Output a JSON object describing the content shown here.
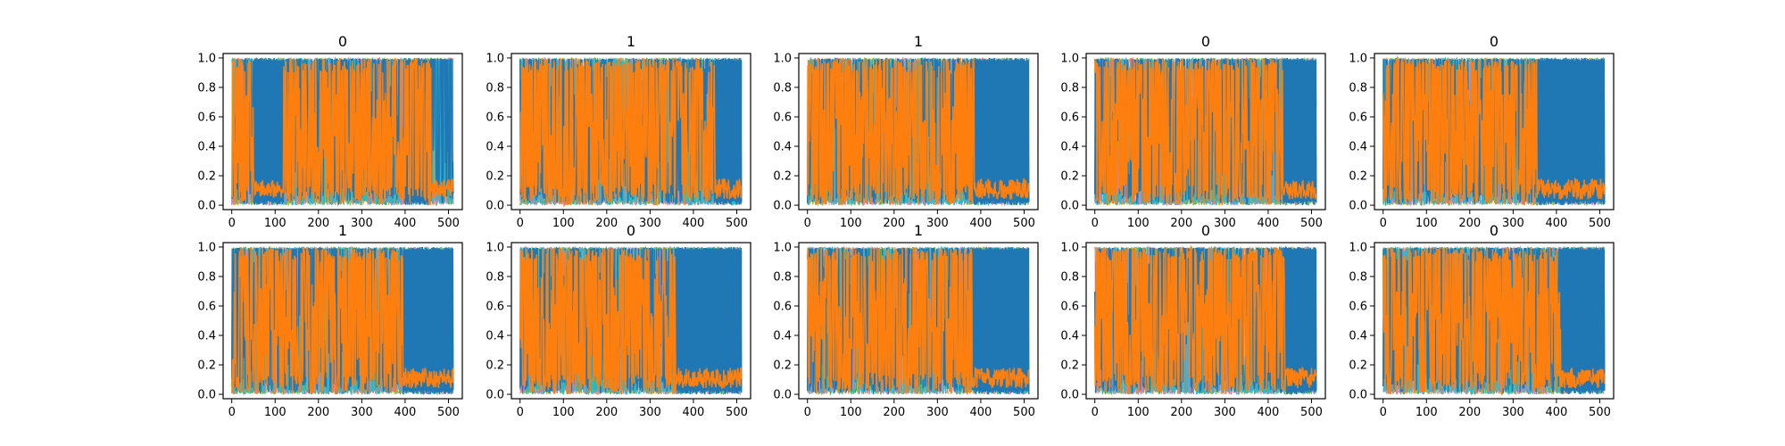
{
  "chart_data": {
    "type": "line",
    "layout": "grid 2 rows x 5 columns",
    "panels": [
      {
        "title": "0",
        "orange_switch_x": 460,
        "blue_block_ranges": [
          [
            50,
            120
          ],
          [
            400,
            460
          ]
        ]
      },
      {
        "title": "1",
        "orange_switch_x": 450,
        "blue_block_ranges": [
          [
            450,
            512
          ]
        ]
      },
      {
        "title": "1",
        "orange_switch_x": 385,
        "blue_block_ranges": [
          [
            385,
            512
          ]
        ]
      },
      {
        "title": "0",
        "orange_switch_x": 435,
        "blue_block_ranges": [
          [
            435,
            512
          ]
        ]
      },
      {
        "title": "0",
        "orange_switch_x": 355,
        "blue_block_ranges": [
          [
            355,
            512
          ]
        ]
      },
      {
        "title": "1",
        "orange_switch_x": 395,
        "blue_block_ranges": [
          [
            395,
            512
          ]
        ]
      },
      {
        "title": "0",
        "orange_switch_x": 360,
        "blue_block_ranges": [
          [
            360,
            512
          ]
        ]
      },
      {
        "title": "1",
        "orange_switch_x": 380,
        "blue_block_ranges": [
          [
            380,
            512
          ]
        ]
      },
      {
        "title": "0",
        "orange_switch_x": 440,
        "blue_block_ranges": [
          [
            440,
            512
          ]
        ]
      },
      {
        "title": "0",
        "orange_switch_x": 410,
        "blue_block_ranges": [
          [
            410,
            512
          ]
        ]
      }
    ],
    "xlim": [
      -20,
      532
    ],
    "ylim": [
      -0.03,
      1.03
    ],
    "x_ticks": [
      0,
      100,
      200,
      300,
      400,
      500
    ],
    "y_ticks": [
      0.0,
      0.2,
      0.4,
      0.6,
      0.8,
      1.0
    ],
    "x_tick_labels": [
      "0",
      "100",
      "200",
      "300",
      "400",
      "500"
    ],
    "y_tick_labels": [
      "0.0",
      "0.2",
      "0.4",
      "0.6",
      "0.8",
      "1.0"
    ],
    "series_count_per_panel": 6,
    "series": [
      {
        "role": "blue",
        "color": "#1f77b4"
      },
      {
        "role": "orange",
        "color": "#ff7f0e"
      },
      {
        "role": "cyan",
        "color": "#17becf"
      },
      {
        "role": "green",
        "color": "#2ca02c"
      },
      {
        "role": "olive",
        "color": "#bcbd22"
      },
      {
        "role": "pink",
        "color": "#e377c2"
      }
    ],
    "grid": false
  }
}
